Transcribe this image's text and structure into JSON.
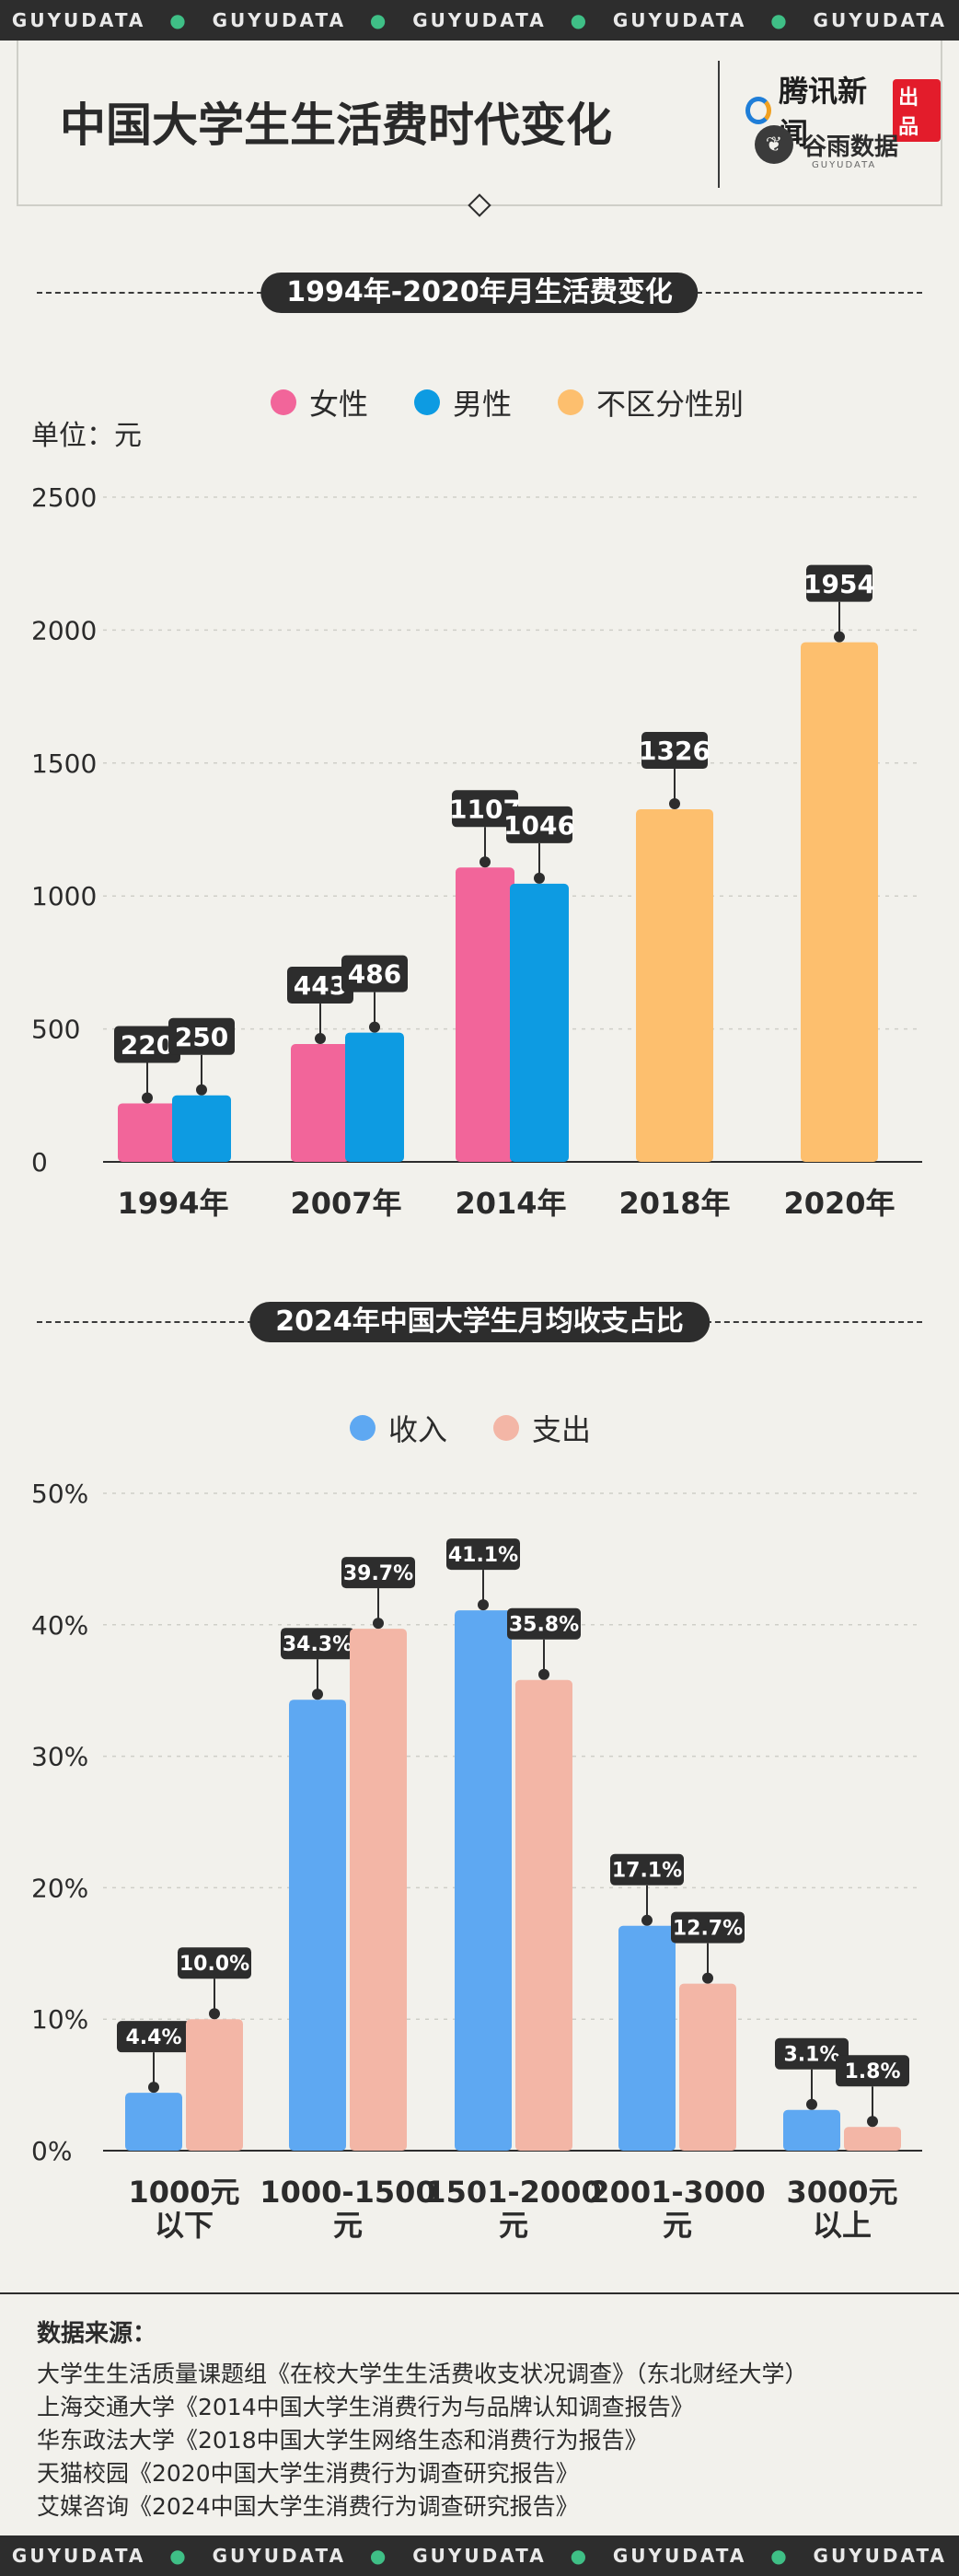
{
  "strip": {
    "word": "GUYUDATA",
    "count": 5
  },
  "header": {
    "title": "中国大学生生活费时代变化",
    "brand_tencent": "腾讯新闻",
    "brand_tencent_badge": "出品",
    "brand_guyu": "谷雨数据",
    "brand_guyu_sub": "GUYUDATA"
  },
  "section1": {
    "title": "1994年-2020年月生活费变化",
    "unit": "单位：元",
    "legend": [
      {
        "name": "女性",
        "color": "#f2659a"
      },
      {
        "name": "男性",
        "color": "#0d9be2"
      },
      {
        "name": "不区分性别",
        "color": "#fdbf6e"
      }
    ]
  },
  "section2": {
    "title": "2024年中国大学生月均收支占比",
    "legend": [
      {
        "name": "收入",
        "color": "#5ea8f2"
      },
      {
        "name": "支出",
        "color": "#f3b6a6"
      }
    ]
  },
  "chart_data": [
    {
      "type": "bar",
      "title": "1994年-2020年月生活费变化",
      "ylabel": "单位：元",
      "categories": [
        "1994年",
        "2007年",
        "2014年",
        "2018年",
        "2020年"
      ],
      "ylim": [
        0,
        2500
      ],
      "yticks": [
        0,
        500,
        1000,
        1500,
        2000,
        2500
      ],
      "grid": true,
      "legend_position": "top",
      "series": [
        {
          "name": "女性",
          "color": "#f2659a",
          "values": [
            220,
            443,
            1107,
            null,
            null
          ]
        },
        {
          "name": "男性",
          "color": "#0d9be2",
          "values": [
            250,
            486,
            1046,
            null,
            null
          ]
        },
        {
          "name": "不区分性别",
          "color": "#fdbf6e",
          "values": [
            null,
            null,
            null,
            1326,
            1954
          ]
        }
      ]
    },
    {
      "type": "bar",
      "title": "2024年中国大学生月均收支占比",
      "categories": [
        "1000元\n以下",
        "1000-1500\n元",
        "1501-2000\n元",
        "2001-3000\n元",
        "3000元\n以上"
      ],
      "ylim": [
        0,
        50
      ],
      "yticks": [
        "0%",
        "10%",
        "20%",
        "30%",
        "40%",
        "50%"
      ],
      "grid": true,
      "legend_position": "top",
      "series": [
        {
          "name": "收入",
          "color": "#5ea8f2",
          "values": [
            4.4,
            34.3,
            41.1,
            17.1,
            3.1
          ],
          "labels": [
            "4.4%",
            "34.3%",
            "41.1%",
            "17.1%",
            "3.1%"
          ]
        },
        {
          "name": "支出",
          "color": "#f3b6a6",
          "values": [
            10.0,
            39.7,
            35.8,
            12.7,
            1.8
          ],
          "labels": [
            "10.0%",
            "39.7%",
            "35.8%",
            "12.7%",
            "1.8%"
          ]
        }
      ]
    }
  ],
  "sources": {
    "heading": "数据来源：",
    "items": [
      "大学生生活质量课题组《在校大学生生活费收支状况调查》（东北财经大学）",
      "上海交通大学《2014中国大学生消费行为与品牌认知调查报告》",
      "华东政法大学《2018中国大学生网络生态和消费行为报告》",
      "天猫校园《2020中国大学生消费行为调查研究报告》",
      "艾媒咨询《2024中国大学生消费行为调查研究报告》"
    ]
  }
}
